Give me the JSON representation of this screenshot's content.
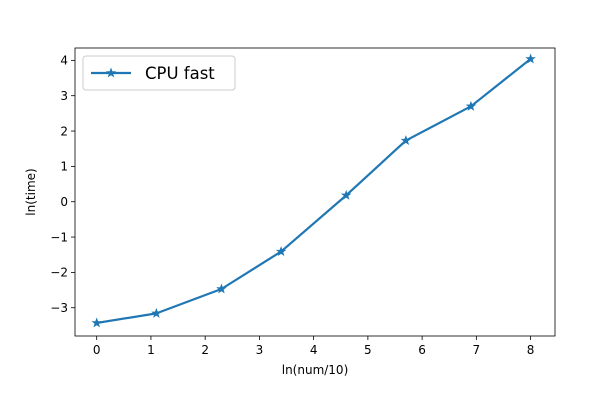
{
  "chart_data": {
    "type": "line",
    "xlabel": "ln(num/10)",
    "ylabel": "ln(time)",
    "xlim": [
      -0.4,
      8.45
    ],
    "ylim": [
      -3.8,
      4.35
    ],
    "x_ticks": [
      0,
      1,
      2,
      3,
      4,
      5,
      6,
      7,
      8
    ],
    "y_ticks": [
      -3,
      -2,
      -1,
      0,
      1,
      2,
      3,
      4
    ],
    "x_tick_labels": [
      "0",
      "1",
      "2",
      "3",
      "4",
      "5",
      "6",
      "7",
      "8"
    ],
    "y_tick_labels": [
      "−3",
      "−2",
      "−1",
      "0",
      "1",
      "2",
      "3",
      "4"
    ],
    "grid": false,
    "legend_position": "top-left",
    "series": [
      {
        "name": "CPU fast",
        "color": "#1f77b4",
        "marker": "star",
        "x": [
          0,
          1.1,
          2.3,
          3.4,
          4.6,
          5.7,
          6.9,
          8.0
        ],
        "y": [
          -3.43,
          -3.16,
          -2.47,
          -1.41,
          0.18,
          1.73,
          2.7,
          4.04
        ]
      }
    ]
  }
}
